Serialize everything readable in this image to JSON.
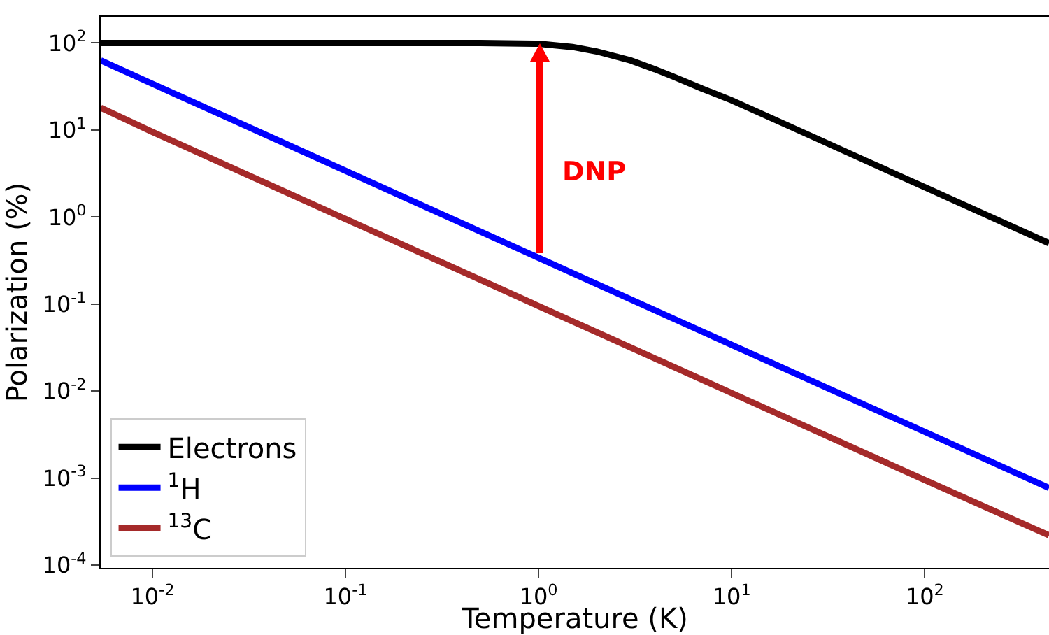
{
  "chart_data": {
    "type": "line",
    "xlabel": "Temperature (K)",
    "ylabel": "Polarization (%)",
    "log": "xy",
    "grid": false,
    "legend": "bottom left",
    "marker": "none",
    "line_style": "solid",
    "xlim": [
      0.0054,
      440
    ],
    "ylim": [
      9.3e-05,
      200
    ],
    "xticks": [
      {
        "value": 0.01,
        "label": "10$^{-2}$"
      },
      {
        "value": 0.1,
        "label": "10$^{-1}$"
      },
      {
        "value": 1,
        "label": "10$^{0}$"
      },
      {
        "value": 10,
        "label": "10$^{1}$"
      },
      {
        "value": 100,
        "label": "10$^{2}$"
      }
    ],
    "yticks": [
      {
        "value": 0.0001,
        "label": "10$^{-4}$"
      },
      {
        "value": 0.001,
        "label": "10$^{-3}$"
      },
      {
        "value": 0.01,
        "label": "10$^{-2}$"
      },
      {
        "value": 0.1,
        "label": "10$^{-1}$"
      },
      {
        "value": 1,
        "label": "10$^{0}$"
      },
      {
        "value": 10,
        "label": "10$^{1}$"
      },
      {
        "value": 100,
        "label": "10$^{2}$"
      }
    ],
    "series": [
      {
        "name": "Electrons",
        "color": "#000000",
        "x": [
          0.0054,
          0.01,
          0.1,
          0.5,
          1,
          1.5,
          2,
          3,
          4,
          5,
          7,
          10,
          20,
          50,
          100,
          200,
          440
        ],
        "values": [
          100,
          100,
          100,
          100,
          98,
          90,
          80,
          63,
          50,
          41,
          30,
          22,
          11,
          4.4,
          2.2,
          1.1,
          0.5
        ]
      },
      {
        "name": "$^{1}$H",
        "color": "#0000ff",
        "x": [
          0.0054,
          0.01,
          0.1,
          1,
          10,
          100,
          440
        ],
        "values": [
          63,
          34,
          3.4,
          0.34,
          0.034,
          0.0034,
          0.00077
        ]
      },
      {
        "name": "$^{13}$C",
        "color": "#a52a2a",
        "x": [
          0.0054,
          0.01,
          0.1,
          1,
          10,
          100,
          440
        ],
        "values": [
          18,
          9.5,
          0.95,
          0.095,
          0.0095,
          0.00095,
          0.00022
        ]
      }
    ],
    "annotations": [
      "DNP"
    ]
  }
}
